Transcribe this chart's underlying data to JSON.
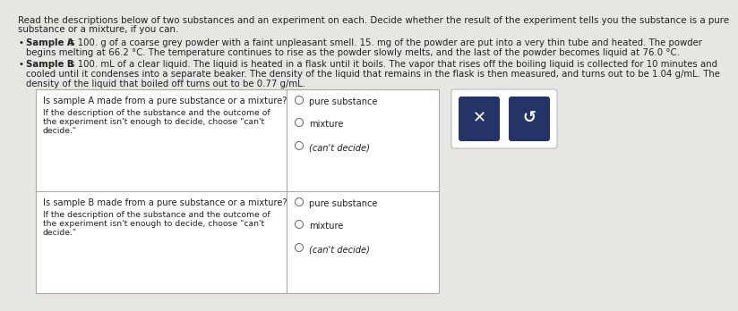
{
  "bg_color": "#e8e6e3",
  "text_area_bg": "#e8e6e3",
  "header_line1": "Read the descriptions below of two substances and an experiment on each. Decide whether the result of the experiment tells you the substance is a pure",
  "header_line2": "substance or a mixture, if you can.",
  "bullet1_bold": "Sample A",
  "bullet1_rest": " is 100. g of a coarse grey powder with a faint unpleasant smell. 15. mg of the powder are put into a very thin tube and heated. The powder",
  "bullet1_line2": "begins melting at 66.2 °C. The temperature continues to rise as the powder slowly melts, and the last of the powder becomes liquid at 76.0 °C.",
  "bullet2_bold": "Sample B",
  "bullet2_rest": " is 100. mL of a clear liquid. The liquid is heated in a flask until it boils. The vapor that rises off the boiling liquid is collected for 10 minutes and",
  "bullet2_line2": "cooled until it condenses into a separate beaker. The density of the liquid that remains in the flask is then measured, and turns out to be 1.04 g/mL. The",
  "bullet2_line3": "density of the liquid that boiled off turns out to be 0.77 g/mL.",
  "row1_q": "Is sample A made from a pure substance or a mixture?",
  "row1_sub1": "If the description of the substance and the outcome of",
  "row1_sub2": "the experiment isn't enough to decide, choose \"can't",
  "row1_sub3": "decide.\"",
  "row2_q": "Is sample B made from a pure substance or a mixture?",
  "row2_sub1": "If the description of the substance and the outcome of",
  "row2_sub2": "the experiment isn't enough to decide, choose \"can't",
  "row2_sub3": "decide.\"",
  "opts": [
    "pure substance",
    "mixture",
    "(can't decide)"
  ],
  "btn_x_color": "#253467",
  "btn_undo_color": "#253467",
  "table_border": "#aaaaaa",
  "white": "#ffffff",
  "text_color": "#222222",
  "radio_color": "#666666",
  "fs_header": 7.4,
  "fs_body": 7.3,
  "fs_table": 7.1,
  "fs_opts": 7.1
}
